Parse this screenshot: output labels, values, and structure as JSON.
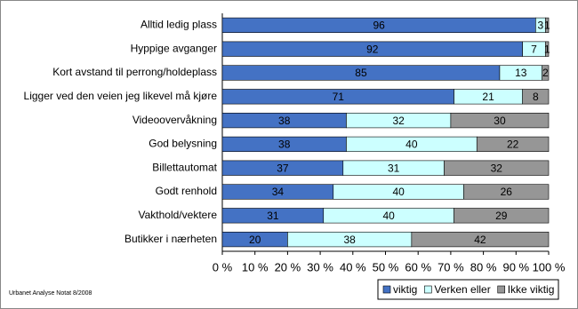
{
  "chart_data": {
    "type": "bar",
    "orientation": "horizontal",
    "stacked": true,
    "categories": [
      "Alltid ledig plass",
      "Hyppige avganger",
      "Kort avstand til perrong/holdeplass",
      "Ligger ved den veien jeg likevel må kjøre",
      "Videoovervåkning",
      "God belysning",
      "Billettautomat",
      "Godt renhold",
      "Vakthold/vektere",
      "Butikker i nærheten"
    ],
    "series": [
      {
        "name": "viktig",
        "color": "#4472c4",
        "values": [
          96,
          92,
          85,
          71,
          38,
          38,
          37,
          34,
          31,
          20
        ]
      },
      {
        "name": "Verken eller",
        "color": "#ccffff",
        "values": [
          3,
          7,
          13,
          21,
          32,
          40,
          31,
          40,
          40,
          38
        ]
      },
      {
        "name": "Ikke viktig",
        "color": "#969696",
        "values": [
          1,
          1,
          2,
          8,
          30,
          22,
          32,
          26,
          29,
          42
        ]
      }
    ],
    "xlim": [
      0,
      100
    ],
    "xticks": [
      {
        "value": 0,
        "label": "0 %"
      },
      {
        "value": 10,
        "label": "10 %"
      },
      {
        "value": 20,
        "label": "20 %"
      },
      {
        "value": 30,
        "label": "30 %"
      },
      {
        "value": 40,
        "label": "40 %"
      },
      {
        "value": 50,
        "label": "50 %"
      },
      {
        "value": 60,
        "label": "60 %"
      },
      {
        "value": 70,
        "label": "70 %"
      },
      {
        "value": 80,
        "label": "80 %"
      },
      {
        "value": 90,
        "label": "90 %"
      },
      {
        "value": 100,
        "label": "100 %"
      }
    ],
    "legend": "bottom-right",
    "source": "Urbanet Analyse Notat 8/2008"
  }
}
